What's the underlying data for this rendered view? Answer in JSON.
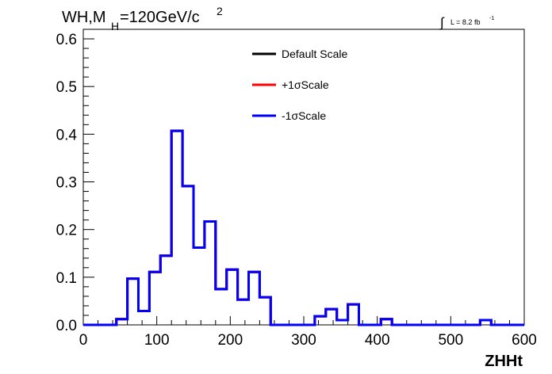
{
  "chart_data": {
    "type": "step-histogram",
    "title_main": "WH,M",
    "title_sub": "H",
    "title_rest": "=120GeV/c",
    "title_sup": "2",
    "lumi_label": "L = 8.2 fb",
    "lumi_sup": "-1",
    "xlabel": "ZHHt",
    "ylabel": "",
    "xlim": [
      0,
      600
    ],
    "ylim": [
      0,
      0.62
    ],
    "x_ticks": [
      "0",
      "100",
      "200",
      "300",
      "400",
      "500",
      "600"
    ],
    "y_ticks": [
      "0.0",
      "0.1",
      "0.2",
      "0.3",
      "0.4",
      "0.5",
      "0.6"
    ],
    "legend_position": "top-center",
    "bin_width": 15,
    "bin_edges_start": 0,
    "series": [
      {
        "name": "Default Scale",
        "color": "#000000",
        "values": [
          0,
          0,
          0,
          0.012,
          0.097,
          0.029,
          0.111,
          0.145,
          0.407,
          0.291,
          0.162,
          0.217,
          0.075,
          0.116,
          0.053,
          0.111,
          0.058,
          0,
          0,
          0,
          0,
          0.018,
          0.033,
          0.01,
          0.043,
          0,
          0,
          0.012,
          0,
          0,
          0,
          0,
          0,
          0,
          0,
          0,
          0.01,
          0,
          0,
          0
        ]
      },
      {
        "name": "+1σScale",
        "color": "#ff0000",
        "values": [
          0,
          0,
          0,
          0.012,
          0.097,
          0.029,
          0.111,
          0.145,
          0.407,
          0.291,
          0.162,
          0.217,
          0.075,
          0.116,
          0.053,
          0.111,
          0.058,
          0,
          0,
          0,
          0,
          0.018,
          0.033,
          0.01,
          0.043,
          0,
          0,
          0.012,
          0,
          0,
          0,
          0,
          0,
          0,
          0,
          0,
          0.01,
          0,
          0,
          0
        ]
      },
      {
        "name": "-1σScale",
        "color": "#0000ff",
        "values": [
          0,
          0,
          0,
          0.012,
          0.097,
          0.029,
          0.111,
          0.145,
          0.407,
          0.291,
          0.162,
          0.217,
          0.075,
          0.116,
          0.053,
          0.111,
          0.058,
          0,
          0,
          0,
          0,
          0.018,
          0.033,
          0.01,
          0.043,
          0,
          0,
          0.012,
          0,
          0,
          0,
          0,
          0,
          0,
          0,
          0,
          0.01,
          0,
          0,
          0
        ]
      }
    ]
  }
}
